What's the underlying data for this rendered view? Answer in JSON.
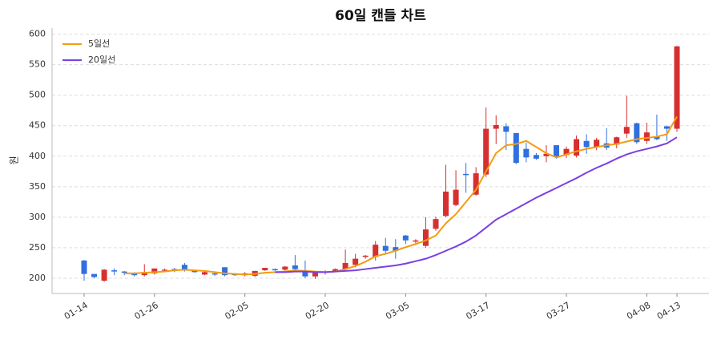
{
  "chart_data": {
    "type": "candlestick",
    "title": "60일 캔들 차트",
    "ylabel": "원",
    "categories": [
      "01-14",
      null,
      null,
      null,
      null,
      null,
      null,
      "01-26",
      null,
      null,
      null,
      null,
      null,
      null,
      null,
      null,
      "02-05",
      null,
      null,
      null,
      null,
      null,
      null,
      null,
      "02-20",
      null,
      null,
      null,
      null,
      null,
      null,
      null,
      "03-05",
      null,
      null,
      null,
      null,
      null,
      null,
      null,
      "03-17",
      null,
      null,
      null,
      null,
      null,
      null,
      null,
      "03-27",
      null,
      null,
      null,
      null,
      null,
      null,
      null,
      "04-08",
      null,
      null,
      "04-13"
    ],
    "open": [
      229,
      207,
      196,
      213,
      211,
      209,
      205,
      208,
      213,
      215,
      222,
      213,
      206,
      208,
      218,
      207,
      205,
      204,
      213,
      215,
      214,
      221,
      210,
      203,
      210,
      212,
      215,
      222,
      235,
      235,
      253,
      251,
      270,
      260,
      253,
      281,
      302,
      320,
      371,
      337,
      370,
      445,
      449,
      438,
      412,
      402,
      400,
      418,
      402,
      401,
      425,
      415,
      421,
      419,
      437,
      454,
      425,
      432,
      449,
      445
    ],
    "high": [
      230,
      207,
      215,
      216,
      212,
      210,
      223,
      216,
      216,
      217,
      225,
      214,
      212,
      209,
      218,
      208,
      210,
      212,
      217,
      216,
      220,
      238,
      229,
      212,
      213,
      216,
      247,
      240,
      238,
      261,
      266,
      264,
      271,
      264,
      300,
      301,
      386,
      377,
      389,
      382,
      480,
      467,
      454,
      438,
      422,
      405,
      418,
      418,
      416,
      434,
      436,
      430,
      446,
      432,
      499,
      455,
      455,
      468,
      450,
      581
    ],
    "low": [
      196,
      200,
      194,
      205,
      205,
      203,
      203,
      206,
      212,
      210,
      211,
      209,
      205,
      204,
      203,
      204,
      203,
      202,
      212,
      212,
      212,
      210,
      200,
      199,
      206,
      210,
      213,
      218,
      232,
      229,
      239,
      232,
      256,
      257,
      250,
      278,
      300,
      318,
      340,
      335,
      366,
      420,
      410,
      387,
      390,
      394,
      390,
      396,
      397,
      398,
      404,
      410,
      410,
      413,
      430,
      420,
      420,
      426,
      425,
      440
    ],
    "close": [
      207,
      202,
      214,
      211,
      209,
      205,
      210,
      216,
      214,
      213,
      213,
      210,
      210,
      206,
      205,
      205,
      208,
      212,
      217,
      213,
      219,
      215,
      203,
      209,
      211,
      215,
      225,
      232,
      237,
      255,
      245,
      245,
      262,
      262,
      280,
      297,
      342,
      345,
      369,
      372,
      445,
      451,
      440,
      389,
      398,
      396,
      404,
      400,
      412,
      428,
      415,
      427,
      414,
      431,
      448,
      423,
      439,
      428,
      445,
      580
    ],
    "up_color": "#d62f2f",
    "down_color": "#2f6fe0",
    "series": [
      {
        "name": "5일선",
        "color": "#f39c12",
        "values": [
          null,
          null,
          null,
          null,
          208,
          208,
          209,
          210,
          211,
          213,
          214,
          213,
          212,
          210,
          208,
          207,
          206,
          207,
          209,
          210,
          211,
          213,
          212,
          211,
          210,
          211,
          215,
          220,
          227,
          236,
          240,
          245,
          251,
          256,
          262,
          270,
          290,
          305,
          325,
          345,
          375,
          405,
          418,
          420,
          425,
          415,
          405,
          398,
          403,
          408,
          412,
          415,
          418,
          420,
          424,
          428,
          430,
          432,
          436,
          465
        ]
      },
      {
        "name": "20일선",
        "color": "#7b3fe4",
        "values": [
          null,
          null,
          null,
          null,
          null,
          null,
          null,
          null,
          null,
          null,
          null,
          null,
          null,
          null,
          null,
          null,
          null,
          null,
          null,
          210,
          210,
          211,
          211,
          210,
          210,
          211,
          212,
          213,
          215,
          217,
          219,
          221,
          224,
          228,
          232,
          238,
          245,
          252,
          260,
          270,
          283,
          296,
          305,
          314,
          323,
          332,
          340,
          348,
          356,
          364,
          373,
          381,
          388,
          396,
          403,
          408,
          412,
          416,
          421,
          431
        ]
      }
    ],
    "ylim": [
      175,
      610
    ],
    "yticks": [
      200,
      250,
      300,
      350,
      400,
      450,
      500,
      550,
      600
    ],
    "grid": true,
    "legend": "upper left"
  }
}
